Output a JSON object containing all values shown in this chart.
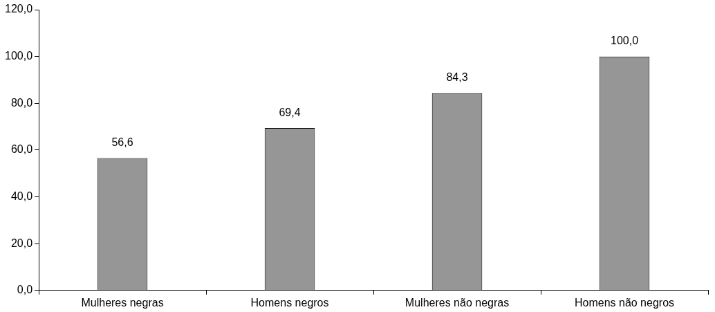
{
  "chart_data": {
    "type": "bar",
    "categories": [
      "Mulheres negras",
      "Homens negros",
      "Mulheres não negras",
      "Homens não negros"
    ],
    "values": [
      56.6,
      69.4,
      84.3,
      100.0
    ],
    "value_labels": [
      "56,6",
      "69,4",
      "84,3",
      "100,0"
    ],
    "color": "#969696",
    "ylim": [
      0,
      120
    ],
    "yticks": [
      {
        "value": 0,
        "label": "0,0"
      },
      {
        "value": 20,
        "label": "20,0"
      },
      {
        "value": 40,
        "label": "40,0"
      },
      {
        "value": 60,
        "label": "60,0"
      },
      {
        "value": 80,
        "label": "80,0"
      },
      {
        "value": 100,
        "label": "100,0"
      },
      {
        "value": 120,
        "label": "120,0"
      }
    ],
    "grid": false,
    "legend": false
  }
}
